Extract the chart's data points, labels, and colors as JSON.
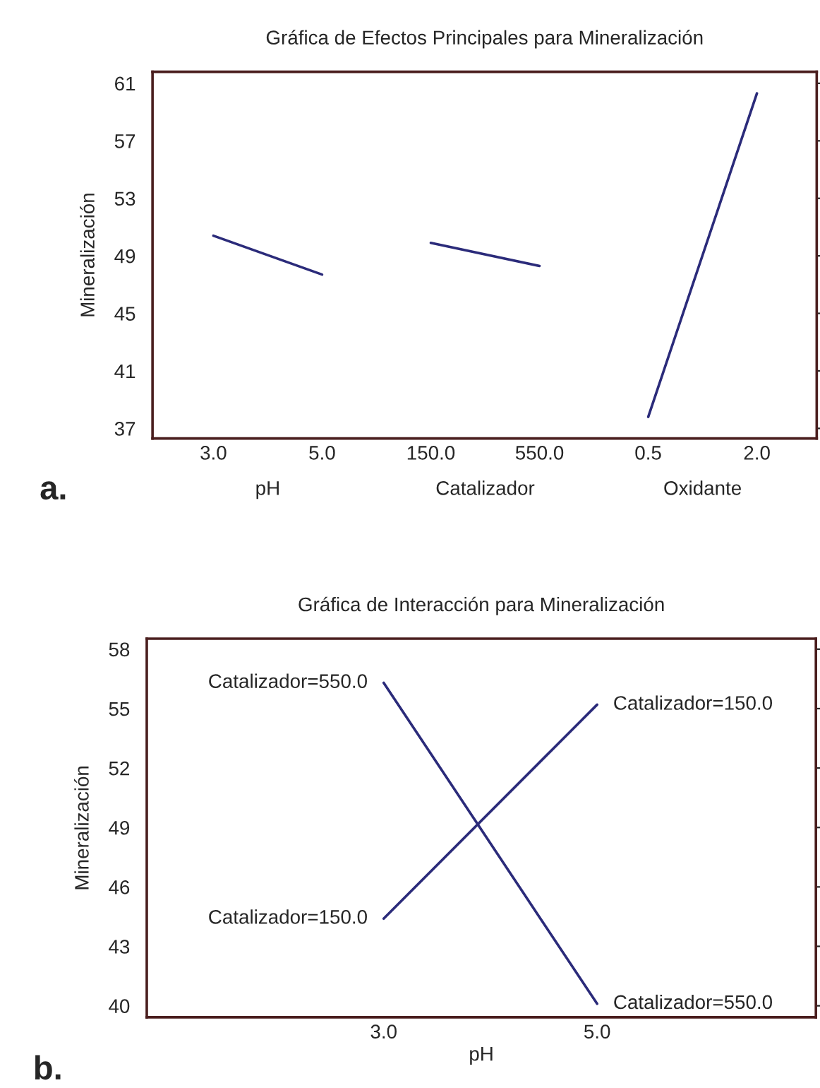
{
  "chart_data": [
    {
      "type": "line",
      "title": "Gráfica de Efectos Principales para Mineralización",
      "ylabel": "Mineralización",
      "categories": [
        "3.0",
        "5.0",
        "150.0",
        "550.0",
        "0.5",
        "2.0"
      ],
      "series": [
        {
          "color": "#2b2b7a",
          "values": [
            50.4,
            47.7,
            null,
            null,
            null,
            null
          ]
        },
        {
          "color": "#2b2b7a",
          "values": [
            null,
            null,
            49.9,
            48.3,
            null,
            null
          ]
        },
        {
          "color": "#2b2b7a",
          "values": [
            null,
            null,
            null,
            null,
            37.8,
            60.3
          ]
        }
      ],
      "ylim": [
        36.3,
        61.8
      ],
      "yticks": [
        37,
        41,
        45,
        49,
        53,
        57,
        61
      ],
      "grid": false,
      "legend": false,
      "marker": "none",
      "line_style": "solid",
      "annotations": [
        "pH",
        "Catalizador",
        "Oxidante",
        "a."
      ]
    },
    {
      "type": "line",
      "title": "Gráfica de Interacción para Mineralización",
      "xlabel": "pH",
      "ylabel": "Mineralización",
      "x": [
        3,
        5
      ],
      "series": [
        {
          "name": "Catalizador=150.0",
          "color": "#2b2b7a",
          "values": [
            44.4,
            55.2
          ]
        },
        {
          "name": "Catalizador=550.0",
          "color": "#2b2b7a",
          "values": [
            56.3,
            40.1
          ]
        }
      ],
      "xlim": [
        0.78,
        7.05
      ],
      "xticks": [
        {
          "value": 3,
          "label": "3.0"
        },
        {
          "value": 5,
          "label": "5.0"
        }
      ],
      "ylim": [
        39.42,
        58.53
      ],
      "yticks": [
        40,
        43,
        46,
        49,
        52,
        55,
        58
      ],
      "grid": false,
      "legend": false,
      "marker": "none",
      "line_style": "solid",
      "annotations": [
        "b."
      ]
    }
  ]
}
